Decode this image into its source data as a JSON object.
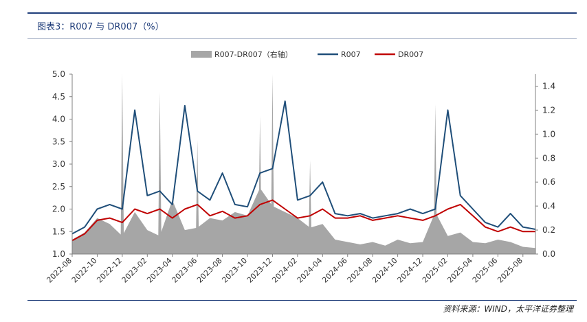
{
  "header": {
    "title": "图表3：R007 与 DR007（%）"
  },
  "footer": {
    "source": "资料来源：WIND，太平洋证券整理"
  },
  "colors": {
    "r007": "#1f4e79",
    "dr007": "#c00000",
    "spread": "#a6a6a6"
  },
  "chart_data": {
    "type": "line",
    "legend_position": "top-center",
    "grid": false,
    "x": [
      "2022-08",
      "2022-09",
      "2022-10",
      "2022-11",
      "2022-12",
      "2023-01",
      "2023-02",
      "2023-03",
      "2023-04",
      "2023-05",
      "2023-06",
      "2023-07",
      "2023-08",
      "2023-09",
      "2023-10",
      "2023-11",
      "2023-12",
      "2024-01",
      "2024-02",
      "2024-03",
      "2024-04",
      "2024-05",
      "2024-06",
      "2024-07",
      "2024-08",
      "2024-09",
      "2024-10",
      "2024-11",
      "2024-12",
      "2025-01",
      "2025-02",
      "2025-03",
      "2025-04",
      "2025-05",
      "2025-06",
      "2025-07",
      "2025-08",
      "2025-09"
    ],
    "x_tick_labels": [
      "2022-08",
      "2022-10",
      "2022-12",
      "2023-02",
      "2023-04",
      "2023-06",
      "2023-08",
      "2023-10",
      "2023-12",
      "2024-02",
      "2024-04",
      "2024-06",
      "2024-08",
      "2024-10",
      "2024-12",
      "2025-02",
      "2025-04",
      "2025-06",
      "2025-08"
    ],
    "y_left": {
      "ylim": [
        1.0,
        5.0
      ],
      "ticks": [
        "1.0",
        "1.5",
        "2.0",
        "2.5",
        "3.0",
        "3.5",
        "4.0",
        "4.5",
        "5.0"
      ]
    },
    "y_right": {
      "ylim": [
        0.0,
        1.5
      ],
      "ticks": [
        "0.0",
        "0.2",
        "0.4",
        "0.6",
        "0.8",
        "1.0",
        "1.2",
        "1.4"
      ]
    },
    "series": [
      {
        "name": "R007-DR007（右轴）",
        "type": "area",
        "axis": "right",
        "values": [
          0.12,
          0.18,
          0.3,
          0.25,
          0.15,
          0.35,
          0.2,
          0.15,
          0.45,
          0.2,
          0.22,
          0.3,
          0.28,
          0.35,
          0.32,
          0.55,
          0.4,
          0.35,
          0.3,
          0.22,
          0.25,
          0.12,
          0.1,
          0.08,
          0.1,
          0.07,
          0.12,
          0.09,
          0.1,
          0.35,
          0.15,
          0.18,
          0.1,
          0.09,
          0.12,
          0.1,
          0.06,
          0.05
        ],
        "peaks": [
          {
            "x": "2022-12",
            "value": 1.5
          },
          {
            "x": "2023-03",
            "value": 1.35
          },
          {
            "x": "2023-06",
            "value": 0.95
          },
          {
            "x": "2023-11",
            "value": 1.15
          },
          {
            "x": "2023-12",
            "value": 1.5
          },
          {
            "x": "2024-03",
            "value": 0.78
          },
          {
            "x": "2025-01",
            "value": 1.25
          }
        ]
      },
      {
        "name": "R007",
        "type": "line",
        "axis": "left",
        "values": [
          1.45,
          1.6,
          2.0,
          2.1,
          2.0,
          4.2,
          2.3,
          2.4,
          2.1,
          4.3,
          2.4,
          2.2,
          2.8,
          2.1,
          2.05,
          2.8,
          2.9,
          4.4,
          2.2,
          2.3,
          2.6,
          1.9,
          1.85,
          1.9,
          1.8,
          1.85,
          1.9,
          2.0,
          1.9,
          2.0,
          4.2,
          2.3,
          2.0,
          1.7,
          1.6,
          1.9,
          1.6,
          1.55
        ]
      },
      {
        "name": "DR007",
        "type": "line",
        "axis": "left",
        "values": [
          1.3,
          1.45,
          1.75,
          1.8,
          1.7,
          2.0,
          1.9,
          2.0,
          1.8,
          2.0,
          2.1,
          1.85,
          1.95,
          1.8,
          1.85,
          2.1,
          2.2,
          2.0,
          1.8,
          1.85,
          2.0,
          1.8,
          1.8,
          1.85,
          1.75,
          1.8,
          1.85,
          1.8,
          1.75,
          1.85,
          2.0,
          2.1,
          1.85,
          1.6,
          1.5,
          1.6,
          1.5,
          1.5
        ]
      }
    ]
  }
}
